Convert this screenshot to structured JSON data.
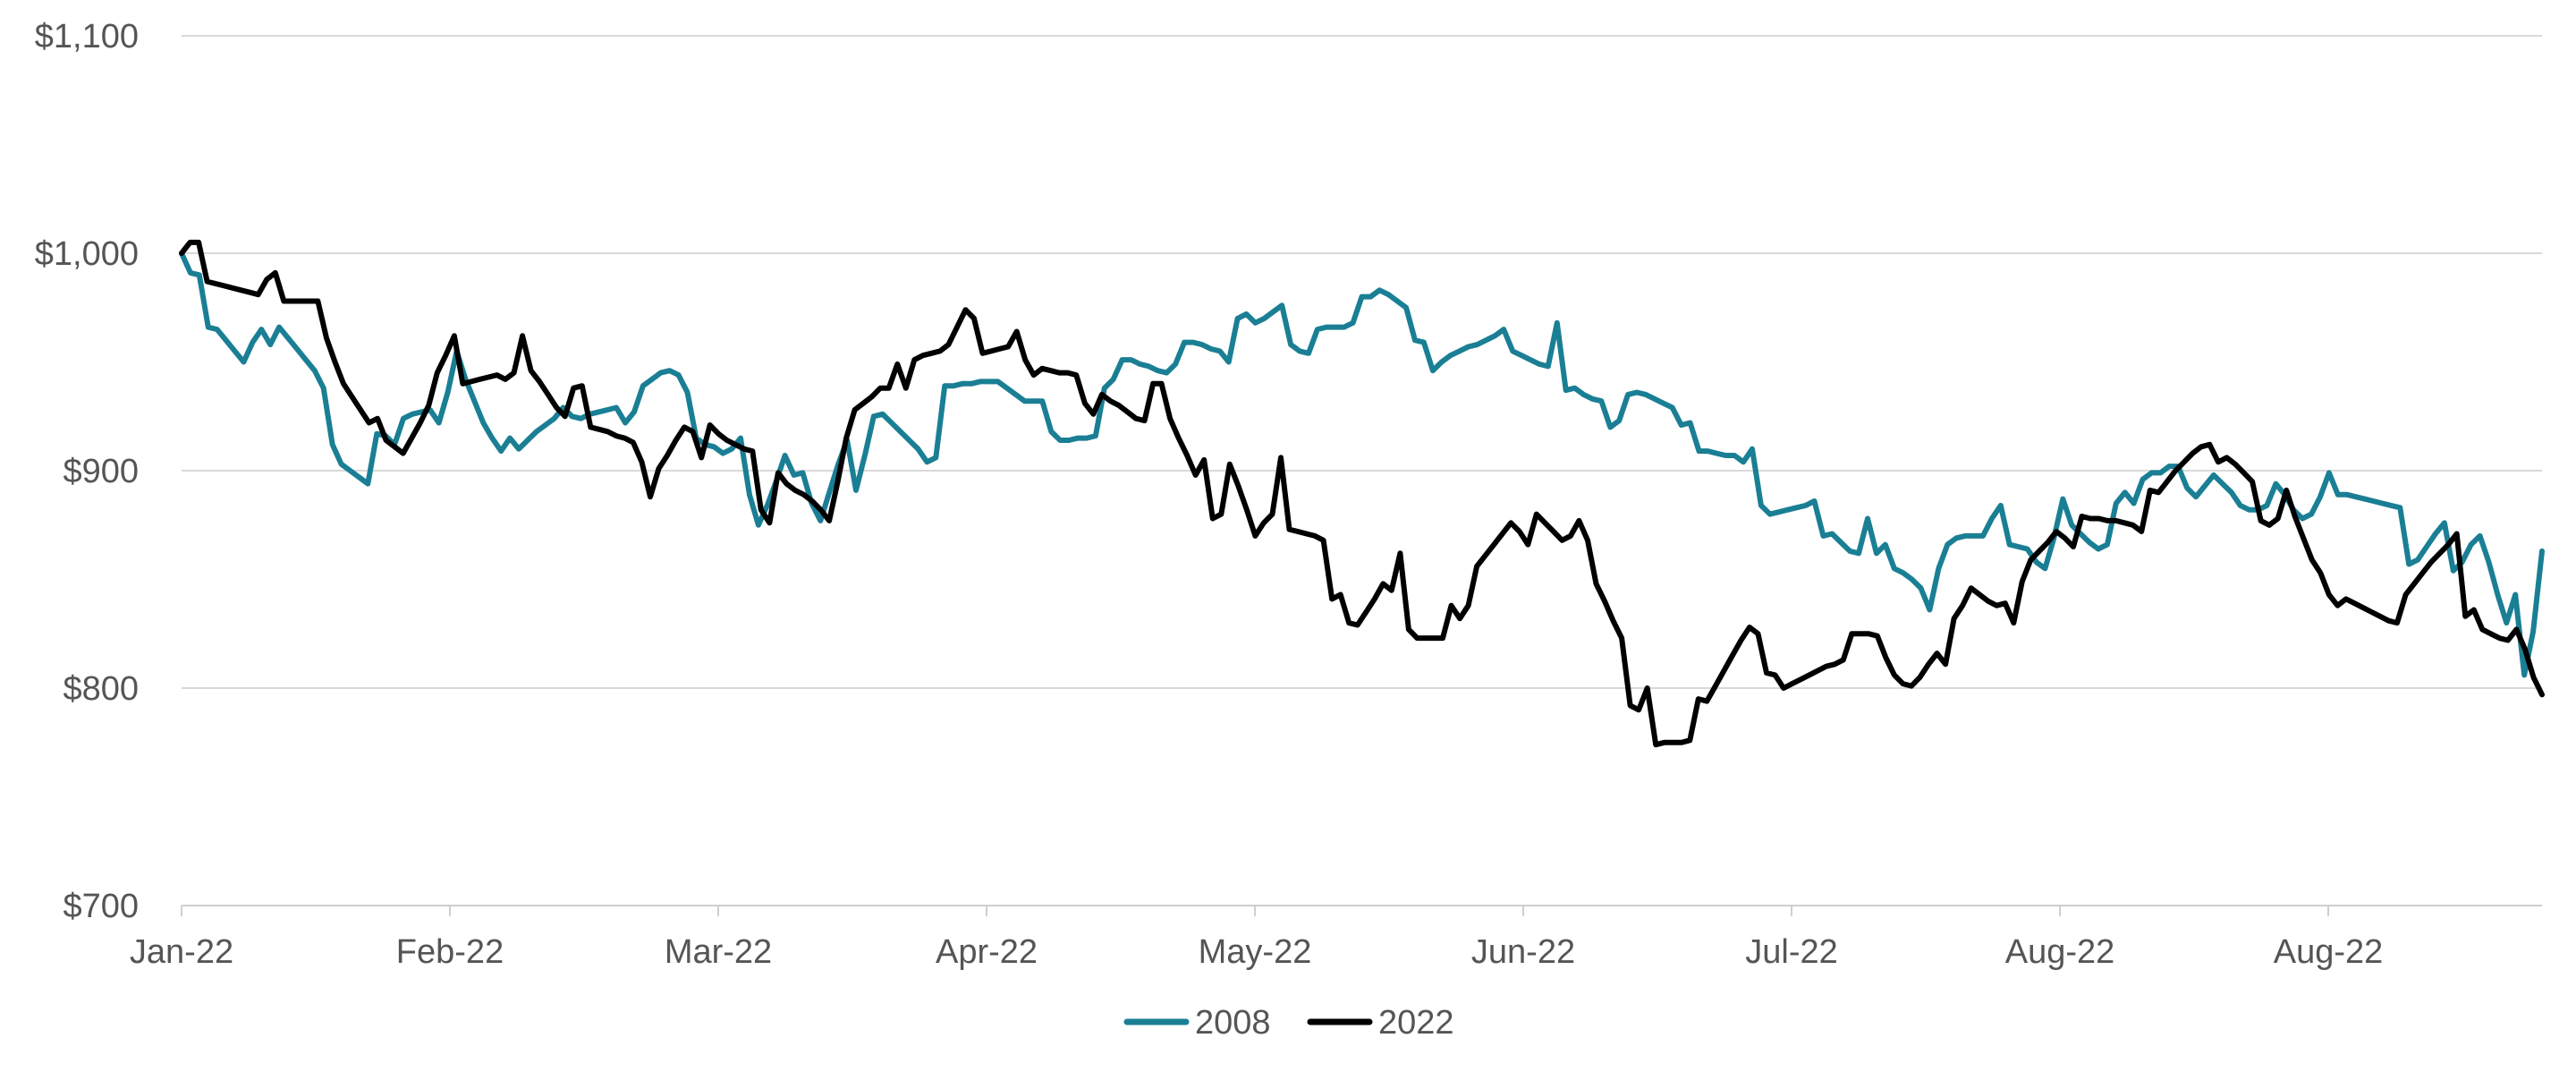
{
  "chart_data": {
    "type": "line",
    "title": "",
    "xlabel": "",
    "ylabel": "",
    "ylim": [
      700,
      1100
    ],
    "ytick_values": [
      700,
      800,
      900,
      1000,
      1100
    ],
    "ytick_labels": [
      "$700",
      "$800",
      "$900",
      "$1,000",
      "$1,100"
    ],
    "xtick_labels": [
      "Jan-22",
      "Feb-22",
      "Mar-22",
      "Apr-22",
      "May-22",
      "Jun-22",
      "Jul-22",
      "Aug-22",
      "Aug-22"
    ],
    "grid": true,
    "legend_position": "bottom-center",
    "series": [
      {
        "name": "2008",
        "color": "#1a7f94",
        "values": [
          1000,
          991,
          990,
          966,
          965,
          960,
          955,
          950,
          959,
          965,
          958,
          966,
          961,
          956,
          951,
          946,
          938,
          912,
          903,
          900,
          897,
          894,
          917,
          916,
          912,
          924,
          926,
          927,
          928,
          922,
          936,
          955,
          942,
          932,
          922,
          915,
          909,
          915,
          910,
          914,
          918,
          921,
          924,
          929,
          925,
          924,
          926,
          927,
          928,
          929,
          922,
          927,
          939,
          942,
          945,
          946,
          944,
          936,
          915,
          912,
          911,
          908,
          910,
          915,
          889,
          875,
          884,
          895,
          907,
          898,
          899,
          885,
          877,
          890,
          903,
          914,
          891,
          907,
          925,
          926,
          922,
          918,
          914,
          910,
          904,
          906,
          939,
          939,
          940,
          940,
          941,
          941,
          941,
          938,
          935,
          932,
          932,
          932,
          918,
          914,
          914,
          915,
          915,
          916,
          938,
          942,
          951,
          951,
          949,
          948,
          946,
          945,
          949,
          959,
          959,
          958,
          956,
          955,
          950,
          970,
          972,
          968,
          970,
          973,
          976,
          958,
          955,
          954,
          965,
          966,
          966,
          966,
          968,
          980,
          980,
          983,
          981,
          978,
          975,
          960,
          959,
          946,
          950,
          953,
          955,
          957,
          958,
          960,
          962,
          965,
          955,
          953,
          951,
          949,
          948,
          968,
          937,
          938,
          935,
          933,
          932,
          920,
          923,
          935,
          936,
          935,
          933,
          931,
          929,
          921,
          922,
          909,
          909,
          908,
          907,
          907,
          904,
          910,
          884,
          880,
          881,
          882,
          883,
          884,
          886,
          870,
          871,
          867,
          863,
          862,
          878,
          862,
          866,
          855,
          853,
          850,
          846,
          836,
          855,
          866,
          869,
          870,
          870,
          870,
          878,
          884,
          866,
          865,
          864,
          858,
          855,
          869,
          887,
          875,
          871,
          867,
          864,
          866,
          885,
          890,
          885,
          896,
          899,
          899,
          902,
          902,
          892,
          888,
          893,
          898,
          894,
          890,
          884,
          882,
          882,
          884,
          894,
          889,
          882,
          878,
          880,
          888,
          899,
          889,
          889,
          888,
          887,
          886,
          885,
          884,
          883,
          857,
          859,
          865,
          871,
          876,
          854,
          858,
          866,
          870,
          858,
          843,
          830,
          843,
          806,
          826,
          863
        ]
      },
      {
        "name": "2022",
        "color": "#000000",
        "values": [
          1000,
          1005,
          1005,
          987,
          986,
          985,
          984,
          983,
          982,
          981,
          988,
          991,
          978,
          978,
          978,
          978,
          978,
          961,
          950,
          940,
          934,
          928,
          922,
          924,
          914,
          911,
          908,
          915,
          922,
          930,
          945,
          953,
          962,
          940,
          941,
          942,
          943,
          944,
          942,
          945,
          962,
          946,
          941,
          935,
          929,
          925,
          938,
          939,
          920,
          919,
          918,
          916,
          915,
          913,
          904,
          888,
          901,
          907,
          914,
          920,
          918,
          906,
          921,
          917,
          914,
          912,
          910,
          909,
          882,
          876,
          899,
          894,
          891,
          889,
          886,
          882,
          877,
          895,
          915,
          928,
          931,
          934,
          938,
          938,
          949,
          938,
          951,
          953,
          954,
          955,
          958,
          966,
          974,
          970,
          954,
          955,
          956,
          957,
          964,
          951,
          944,
          947,
          946,
          945,
          945,
          944,
          931,
          926,
          935,
          932,
          930,
          927,
          924,
          923,
          940,
          940,
          924,
          915,
          907,
          898,
          905,
          878,
          880,
          903,
          893,
          882,
          870,
          876,
          880,
          906,
          873,
          872,
          871,
          870,
          868,
          841,
          843,
          830,
          829,
          835,
          841,
          848,
          845,
          862,
          827,
          823,
          823,
          823,
          823,
          838,
          832,
          838,
          856,
          861,
          866,
          871,
          876,
          872,
          866,
          880,
          876,
          872,
          868,
          870,
          877,
          868,
          848,
          840,
          831,
          823,
          792,
          790,
          800,
          774,
          775,
          775,
          775,
          776,
          795,
          794,
          801,
          808,
          815,
          822,
          828,
          825,
          807,
          806,
          800,
          802,
          804,
          806,
          808,
          810,
          811,
          813,
          825,
          825,
          825,
          824,
          814,
          806,
          802,
          801,
          805,
          811,
          816,
          811,
          832,
          838,
          846,
          843,
          840,
          838,
          839,
          830,
          849,
          859,
          863,
          867,
          872,
          869,
          865,
          879,
          878,
          878,
          877,
          877,
          876,
          875,
          872,
          891,
          890,
          895,
          900,
          904,
          908,
          911,
          912,
          904,
          906,
          903,
          899,
          895,
          877,
          875,
          878,
          891,
          879,
          869,
          859,
          853,
          843,
          838,
          841,
          839,
          837,
          835,
          833,
          831,
          830,
          843,
          848,
          853,
          858,
          862,
          866,
          871,
          833,
          836,
          827,
          825,
          823,
          822,
          827,
          818,
          805,
          797
        ]
      }
    ]
  }
}
